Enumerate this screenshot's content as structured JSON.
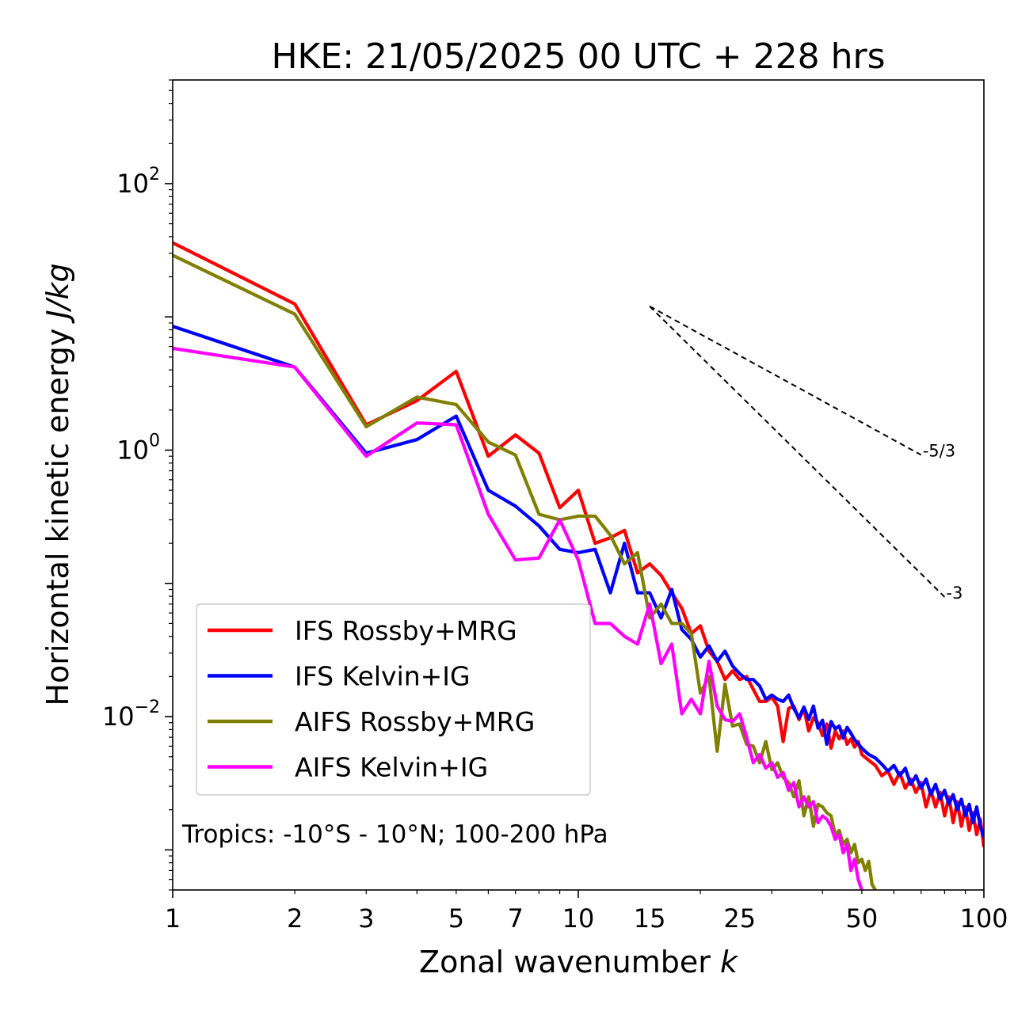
{
  "chart_data": {
    "type": "line",
    "title": "HKE: 21/05/2025 00 UTC + 228 hrs",
    "xlabel": "Zonal wavenumber",
    "xlabel_var": "k",
    "ylabel": "Horizontal kinetic energy",
    "ylabel_unit": "J/kg",
    "xscale": "log",
    "yscale": "log",
    "xlim": [
      1,
      100
    ],
    "ylim": [
      0.0005,
      600
    ],
    "xticks": [
      1,
      2,
      3,
      5,
      7,
      10,
      15,
      25,
      50,
      100
    ],
    "xtick_labels": [
      "1",
      "2",
      "3",
      "5",
      "7",
      "10",
      "15",
      "25",
      "50",
      "100"
    ],
    "yticks": [
      {
        "value": 100,
        "base": "10",
        "exp": "2"
      },
      {
        "value": 1,
        "base": "10",
        "exp": "0"
      },
      {
        "value": 0.01,
        "base": "10",
        "exp": "−2"
      }
    ],
    "grid": false,
    "legend_position": "lower-left",
    "annotation": "Tropics: -10°S - 10°N; 100-200 hPa",
    "reference_slopes": [
      {
        "label": "-5/3",
        "slope": -1.6667,
        "x": [
          15,
          70
        ],
        "y0": 12
      },
      {
        "label": "-3",
        "slope": -3,
        "x": [
          15,
          80
        ],
        "y0": 12
      }
    ],
    "series": [
      {
        "name": "IFS Rossby+MRG",
        "color": "#ff0000",
        "points": [
          [
            1,
            36
          ],
          [
            2,
            12.5
          ],
          [
            3,
            1.55
          ],
          [
            4,
            2.35
          ],
          [
            5,
            3.9
          ],
          [
            6,
            0.9
          ],
          [
            7,
            1.3
          ],
          [
            8,
            0.95
          ],
          [
            9,
            0.37
          ],
          [
            10,
            0.5
          ],
          [
            11,
            0.2
          ],
          [
            12,
            0.22
          ],
          [
            13,
            0.25
          ],
          [
            14,
            0.12
          ],
          [
            15,
            0.14
          ],
          [
            16,
            0.115
          ],
          [
            17,
            0.085
          ],
          [
            18,
            0.065
          ],
          [
            19,
            0.042
          ],
          [
            20,
            0.048
          ],
          [
            21,
            0.031
          ],
          [
            22,
            0.026
          ],
          [
            23,
            0.019
          ],
          [
            24,
            0.022
          ],
          [
            25,
            0.019
          ],
          [
            26,
            0.02
          ],
          [
            27,
            0.016
          ],
          [
            28,
            0.013
          ],
          [
            29,
            0.013
          ],
          [
            30,
            0.014
          ],
          [
            31,
            0.012
          ],
          [
            32,
            0.0065
          ],
          [
            33,
            0.0115
          ],
          [
            34,
            0.012
          ],
          [
            35,
            0.0095
          ],
          [
            36,
            0.0115
          ],
          [
            37,
            0.0078
          ],
          [
            38,
            0.0098
          ],
          [
            39,
            0.009
          ],
          [
            40,
            0.0072
          ],
          [
            41,
            0.0088
          ],
          [
            42,
            0.0058
          ],
          [
            43,
            0.0078
          ],
          [
            44,
            0.0068
          ],
          [
            45,
            0.0078
          ],
          [
            46,
            0.0062
          ],
          [
            47,
            0.0068
          ],
          [
            48,
            0.0059
          ],
          [
            49,
            0.0065
          ],
          [
            50,
            0.0052
          ],
          [
            52,
            0.0047
          ],
          [
            54,
            0.0043
          ],
          [
            56,
            0.0036
          ],
          [
            58,
            0.0039
          ],
          [
            60,
            0.0031
          ],
          [
            62,
            0.0038
          ],
          [
            64,
            0.0029
          ],
          [
            66,
            0.0034
          ],
          [
            68,
            0.0027
          ],
          [
            70,
            0.0032
          ],
          [
            72,
            0.0021
          ],
          [
            74,
            0.0028
          ],
          [
            76,
            0.0021
          ],
          [
            78,
            0.0027
          ],
          [
            80,
            0.0018
          ],
          [
            82,
            0.0025
          ],
          [
            84,
            0.0016
          ],
          [
            86,
            0.0023
          ],
          [
            88,
            0.0015
          ],
          [
            90,
            0.0021
          ],
          [
            92,
            0.0014
          ],
          [
            94,
            0.0019
          ],
          [
            96,
            0.0013
          ],
          [
            98,
            0.0017
          ],
          [
            100,
            0.00105
          ]
        ]
      },
      {
        "name": "IFS Kelvin+IG",
        "color": "#0000ff",
        "points": [
          [
            1,
            8.5
          ],
          [
            2,
            4.2
          ],
          [
            3,
            0.95
          ],
          [
            4,
            1.2
          ],
          [
            5,
            1.8
          ],
          [
            6,
            0.5
          ],
          [
            7,
            0.38
          ],
          [
            8,
            0.27
          ],
          [
            9,
            0.18
          ],
          [
            10,
            0.17
          ],
          [
            11,
            0.18
          ],
          [
            12,
            0.085
          ],
          [
            13,
            0.2
          ],
          [
            14,
            0.085
          ],
          [
            15,
            0.085
          ],
          [
            16,
            0.055
          ],
          [
            17,
            0.09
          ],
          [
            18,
            0.045
          ],
          [
            19,
            0.038
          ],
          [
            20,
            0.028
          ],
          [
            21,
            0.034
          ],
          [
            22,
            0.026
          ],
          [
            23,
            0.031
          ],
          [
            24,
            0.024
          ],
          [
            25,
            0.021
          ],
          [
            26,
            0.019
          ],
          [
            27,
            0.019
          ],
          [
            28,
            0.017
          ],
          [
            29,
            0.0135
          ],
          [
            30,
            0.0145
          ],
          [
            31,
            0.0135
          ],
          [
            32,
            0.013
          ],
          [
            33,
            0.0145
          ],
          [
            34,
            0.0115
          ],
          [
            35,
            0.0098
          ],
          [
            36,
            0.0118
          ],
          [
            37,
            0.0095
          ],
          [
            38,
            0.012
          ],
          [
            39,
            0.0082
          ],
          [
            40,
            0.0094
          ],
          [
            41,
            0.0062
          ],
          [
            42,
            0.0092
          ],
          [
            43,
            0.0081
          ],
          [
            44,
            0.0085
          ],
          [
            45,
            0.0069
          ],
          [
            46,
            0.0083
          ],
          [
            47,
            0.0075
          ],
          [
            48,
            0.0067
          ],
          [
            50,
            0.0058
          ],
          [
            52,
            0.0052
          ],
          [
            54,
            0.0049
          ],
          [
            56,
            0.0044
          ],
          [
            58,
            0.0039
          ],
          [
            60,
            0.0043
          ],
          [
            62,
            0.0036
          ],
          [
            64,
            0.0041
          ],
          [
            66,
            0.0031
          ],
          [
            68,
            0.0036
          ],
          [
            70,
            0.0029
          ],
          [
            72,
            0.0034
          ],
          [
            74,
            0.0026
          ],
          [
            76,
            0.0031
          ],
          [
            78,
            0.0024
          ],
          [
            80,
            0.0028
          ],
          [
            82,
            0.0022
          ],
          [
            84,
            0.0026
          ],
          [
            86,
            0.002
          ],
          [
            88,
            0.0024
          ],
          [
            90,
            0.0018
          ],
          [
            92,
            0.0022
          ],
          [
            94,
            0.0016
          ],
          [
            96,
            0.0021
          ],
          [
            98,
            0.0015
          ],
          [
            100,
            0.00125
          ]
        ]
      },
      {
        "name": "AIFS Rossby+MRG",
        "color": "#808000",
        "points": [
          [
            1,
            29
          ],
          [
            2,
            10.5
          ],
          [
            3,
            1.5
          ],
          [
            4,
            2.5
          ],
          [
            5,
            2.2
          ],
          [
            6,
            1.15
          ],
          [
            7,
            0.92
          ],
          [
            8,
            0.33
          ],
          [
            9,
            0.3
          ],
          [
            10,
            0.32
          ],
          [
            11,
            0.32
          ],
          [
            12,
            0.23
          ],
          [
            13,
            0.14
          ],
          [
            14,
            0.17
          ],
          [
            15,
            0.055
          ],
          [
            16,
            0.07
          ],
          [
            17,
            0.05
          ],
          [
            18,
            0.05
          ],
          [
            19,
            0.042
          ],
          [
            20,
            0.015
          ],
          [
            21,
            0.02
          ],
          [
            22,
            0.0055
          ],
          [
            23,
            0.0175
          ],
          [
            24,
            0.0085
          ],
          [
            25,
            0.0088
          ],
          [
            26,
            0.0062
          ],
          [
            27,
            0.006
          ],
          [
            28,
            0.0045
          ],
          [
            29,
            0.0065
          ],
          [
            30,
            0.004
          ],
          [
            31,
            0.0045
          ],
          [
            32,
            0.0035
          ],
          [
            33,
            0.0032
          ],
          [
            34,
            0.0025
          ],
          [
            35,
            0.0033
          ],
          [
            36,
            0.0018
          ],
          [
            37,
            0.0025
          ],
          [
            38,
            0.0015
          ],
          [
            39,
            0.0022
          ],
          [
            40,
            0.0021
          ],
          [
            41,
            0.0019
          ],
          [
            42,
            0.0018
          ],
          [
            43,
            0.0013
          ],
          [
            44,
            0.0014
          ],
          [
            45,
            0.0011
          ],
          [
            46,
            0.0012
          ],
          [
            47,
            0.00095
          ],
          [
            48,
            0.0011
          ],
          [
            49,
            0.0008
          ],
          [
            50,
            0.00085
          ],
          [
            51,
            0.0007
          ],
          [
            52,
            0.00082
          ],
          [
            53,
            0.00055
          ],
          [
            54,
            0.0005
          ]
        ]
      },
      {
        "name": "AIFS Kelvin+IG",
        "color": "#ff00ff",
        "points": [
          [
            1,
            5.8
          ],
          [
            2,
            4.2
          ],
          [
            3,
            0.9
          ],
          [
            4,
            1.6
          ],
          [
            5,
            1.55
          ],
          [
            6,
            0.33
          ],
          [
            7,
            0.15
          ],
          [
            8,
            0.155
          ],
          [
            9,
            0.3
          ],
          [
            10,
            0.15
          ],
          [
            11,
            0.05
          ],
          [
            12,
            0.05
          ],
          [
            13,
            0.04
          ],
          [
            14,
            0.035
          ],
          [
            15,
            0.07
          ],
          [
            16,
            0.025
          ],
          [
            17,
            0.035
          ],
          [
            18,
            0.0105
          ],
          [
            19,
            0.0135
          ],
          [
            20,
            0.0105
          ],
          [
            21,
            0.026
          ],
          [
            22,
            0.012
          ],
          [
            23,
            0.0095
          ],
          [
            24,
            0.0092
          ],
          [
            25,
            0.0105
          ],
          [
            26,
            0.007
          ],
          [
            27,
            0.0045
          ],
          [
            28,
            0.0052
          ],
          [
            29,
            0.0041
          ],
          [
            30,
            0.0045
          ],
          [
            31,
            0.0035
          ],
          [
            32,
            0.0038
          ],
          [
            33,
            0.0028
          ],
          [
            34,
            0.0032
          ],
          [
            35,
            0.0021
          ],
          [
            36,
            0.0025
          ],
          [
            37,
            0.0021
          ],
          [
            38,
            0.0023
          ],
          [
            39,
            0.0016
          ],
          [
            40,
            0.0018
          ],
          [
            41,
            0.0017
          ],
          [
            42,
            0.0015
          ],
          [
            43,
            0.0012
          ],
          [
            44,
            0.0013
          ],
          [
            45,
            0.00095
          ],
          [
            46,
            0.0011
          ],
          [
            47,
            0.0007
          ],
          [
            48,
            0.00085
          ],
          [
            49,
            0.0006
          ],
          [
            50,
            0.0005
          ]
        ]
      }
    ]
  }
}
